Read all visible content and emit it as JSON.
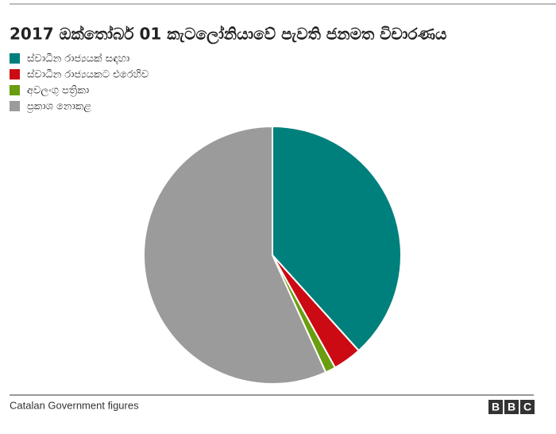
{
  "chart_data": {
    "type": "pie",
    "title": "2017 ඔක්තෝබර් 01 කැටලෝනියාවේ පැවති ජනමත විචාරණය",
    "categories": [
      "ස්වාධීන රාජ්‍යයක් සඳහා",
      "ස්වාධීන රාජ්‍යයකට එරෙහිව",
      "අවලංගු පත්‍රිකා",
      "ප්‍රකාශ නොකළ"
    ],
    "values": [
      38.3,
      3.6,
      1.3,
      56.8
    ],
    "colors": [
      "#00807c",
      "#cc0a13",
      "#6a9e10",
      "#9b9b9b"
    ],
    "legend": "top-left",
    "source": "Catalan Government figures",
    "logo": [
      "B",
      "B",
      "C"
    ]
  }
}
